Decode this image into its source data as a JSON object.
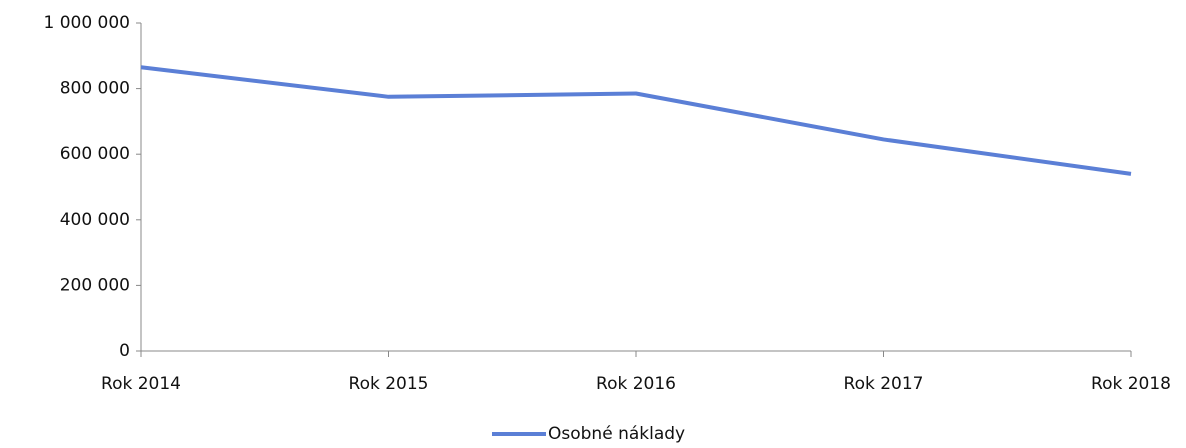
{
  "chart_data": {
    "type": "line",
    "categories": [
      "Rok 2014",
      "Rok 2015",
      "Rok 2016",
      "Rok 2017",
      "Rok 2018"
    ],
    "series": [
      {
        "name": "Osobné náklady",
        "color": "#5b7fd6",
        "values": [
          865000,
          775000,
          785000,
          645000,
          540000
        ]
      }
    ],
    "ylim": [
      0,
      1000000
    ],
    "yticks": [
      0,
      {
        "value": 200000,
        "label": "200 000"
      },
      {
        "value": 400000,
        "label": "400 000"
      },
      {
        "value": 600000,
        "label": "600 000"
      },
      {
        "value": 800000,
        "label": "800 000"
      },
      {
        "value": 1000000,
        "label": "1 000 000"
      }
    ],
    "grid": false,
    "legend": "bottom"
  }
}
